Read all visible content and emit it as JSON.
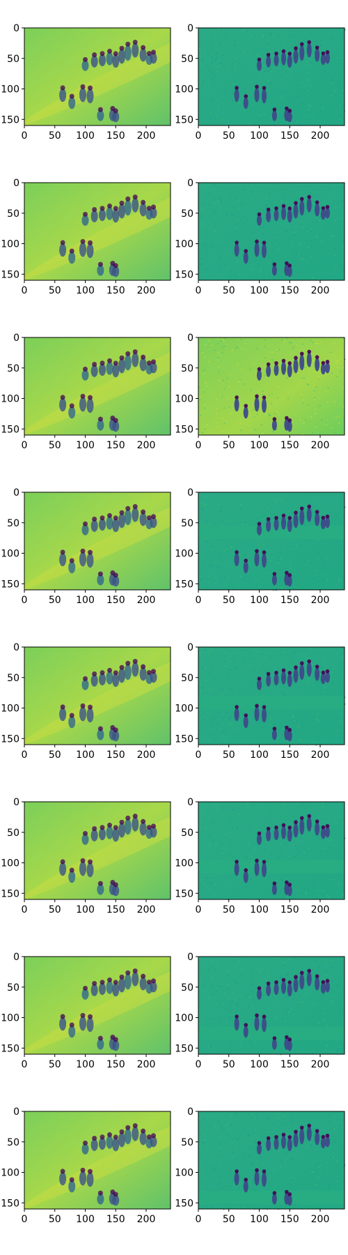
{
  "figure": {
    "rows": 8,
    "cols": 2,
    "colormap": "viridis",
    "axes": {
      "y_ticks": [
        "0",
        "50",
        "100",
        "150"
      ],
      "x_ticks": [
        "0",
        "50",
        "100",
        "150",
        "200"
      ]
    },
    "image_extent": {
      "width": 240,
      "height": 160
    },
    "panels": [
      {
        "row": 1,
        "col": 1,
        "variant": "blurred-reconstruction"
      },
      {
        "row": 1,
        "col": 2,
        "variant": "detailed-reconstruction"
      },
      {
        "row": 2,
        "col": 1,
        "variant": "blurred-reconstruction"
      },
      {
        "row": 2,
        "col": 2,
        "variant": "detailed-reconstruction"
      },
      {
        "row": 3,
        "col": 1,
        "variant": "blurred-reconstruction"
      },
      {
        "row": 3,
        "col": 2,
        "variant": "detailed-reconstruction-noisy"
      },
      {
        "row": 4,
        "col": 1,
        "variant": "blurred-reconstruction"
      },
      {
        "row": 4,
        "col": 2,
        "variant": "detailed-reconstruction-masked"
      },
      {
        "row": 5,
        "col": 1,
        "variant": "blurred-reconstruction"
      },
      {
        "row": 5,
        "col": 2,
        "variant": "detailed-reconstruction-masked"
      },
      {
        "row": 6,
        "col": 1,
        "variant": "blurred-reconstruction"
      },
      {
        "row": 6,
        "col": 2,
        "variant": "detailed-reconstruction-masked"
      },
      {
        "row": 7,
        "col": 1,
        "variant": "blurred-reconstruction"
      },
      {
        "row": 7,
        "col": 2,
        "variant": "detailed-reconstruction-masked"
      },
      {
        "row": 8,
        "col": 1,
        "variant": "blurred-reconstruction"
      },
      {
        "row": 8,
        "col": 2,
        "variant": "detailed-reconstruction-masked"
      }
    ]
  }
}
